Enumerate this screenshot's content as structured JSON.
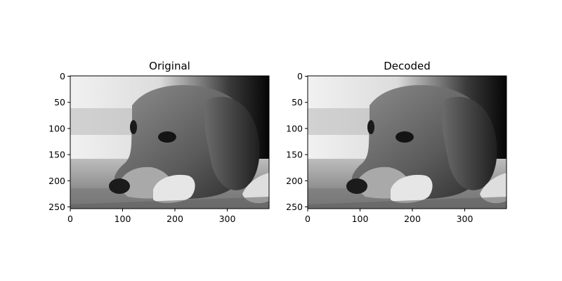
{
  "figure": {
    "panels": [
      {
        "title": "Original",
        "xticks": [
          "0",
          "100",
          "200",
          "300"
        ],
        "yticks": [
          "0",
          "50",
          "100",
          "150",
          "200",
          "250"
        ],
        "image": "grayscale photo of a beagle dog resting its head on its paws on a carpet"
      },
      {
        "title": "Decoded",
        "xticks": [
          "0",
          "100",
          "200",
          "300"
        ],
        "yticks": [
          "0",
          "50",
          "100",
          "150",
          "200",
          "250"
        ],
        "image": "grayscale photo of a beagle dog resting its head on its paws on a carpet"
      }
    ]
  }
}
